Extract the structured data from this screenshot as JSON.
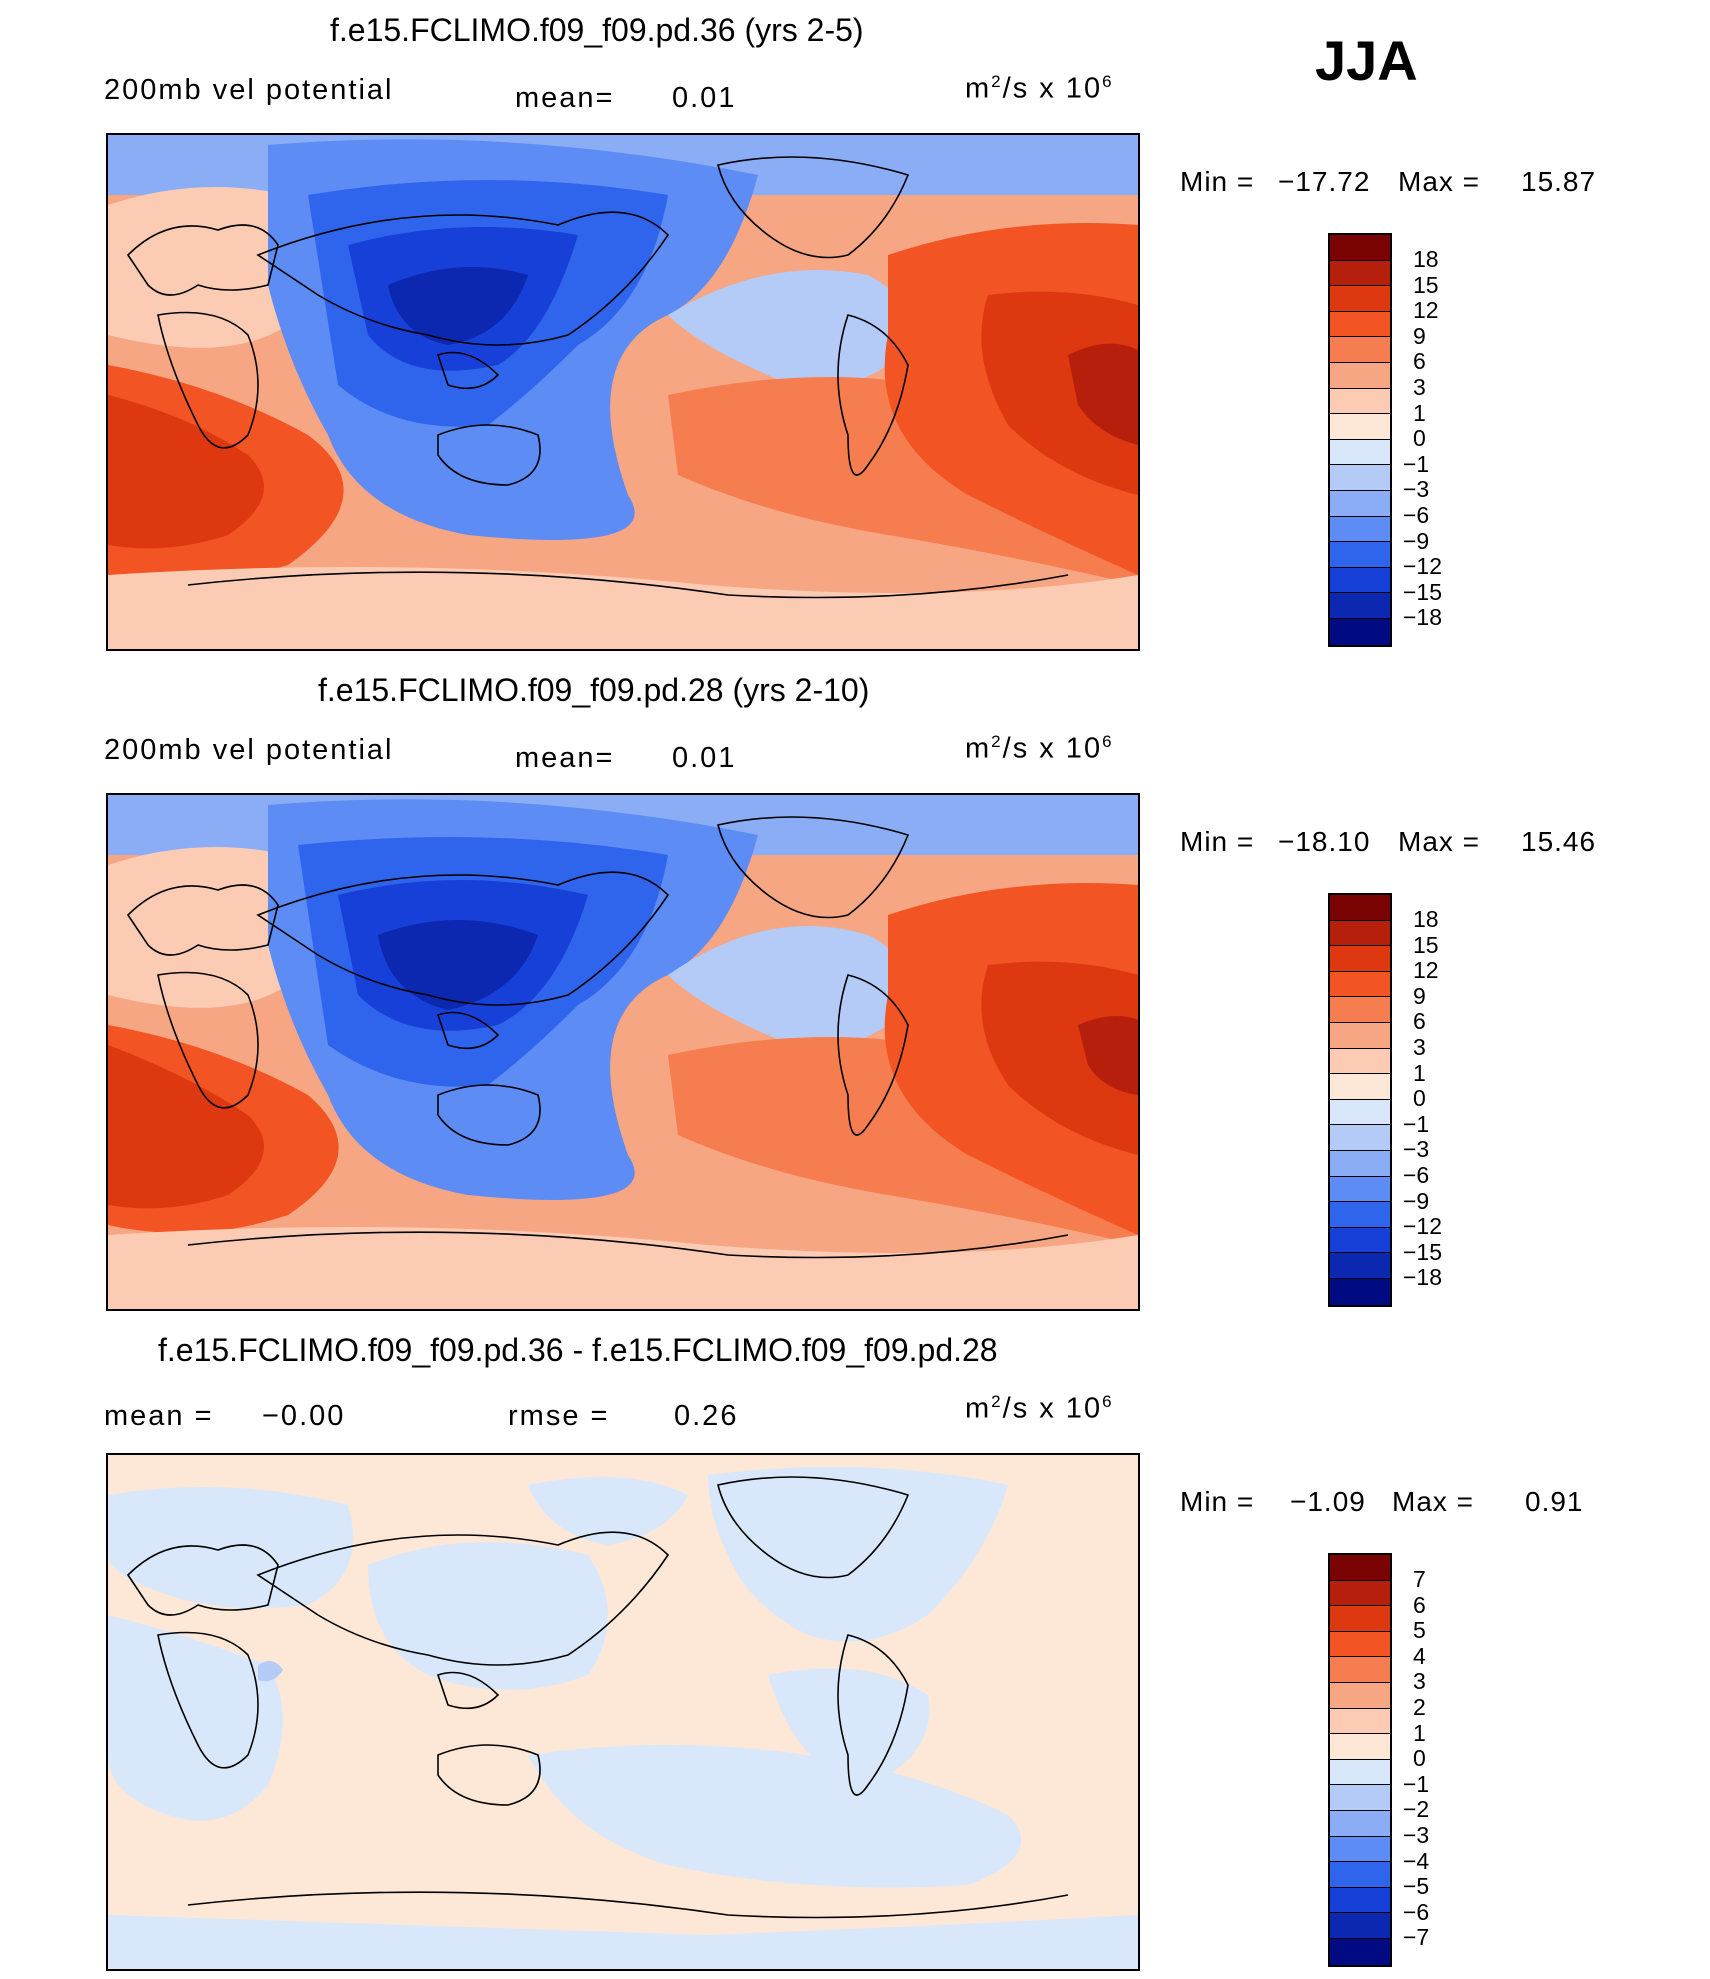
{
  "season": "JJA",
  "legend_colors": [
    "#7a0403",
    "#b71f0d",
    "#dd380f",
    "#f25424",
    "#f57d4f",
    "#f6a683",
    "#fbcbb3",
    "#fde7d6",
    "#d8e8fa",
    "#b4cbf7",
    "#8aadf6",
    "#5d8cf4",
    "#2f65ec",
    "#1640d8",
    "#0c27b0",
    "#000a83"
  ],
  "panels": [
    {
      "title": "f.e15.FCLIMO.f09_f09.pd.36 (yrs 2-5)",
      "left_label": "200mb  vel  potential",
      "mid_label": "mean=",
      "mid_value": "0.01",
      "units": "m",
      "units_sup": "2",
      "units_rest": "/s  x  10",
      "units_exp": "6",
      "min_label": "Min  =",
      "min_value": "−17.72",
      "max_label": "Max  =",
      "max_value": "15.87",
      "levels": [
        "18",
        "15",
        "12",
        "9",
        "6",
        "3",
        "1",
        "0",
        "−1",
        "−3",
        "−6",
        "−9",
        "−12",
        "−15",
        "−18"
      ]
    },
    {
      "title": "f.e15.FCLIMO.f09_f09.pd.28 (yrs 2-10)",
      "left_label": "200mb  vel  potential",
      "mid_label": "mean=",
      "mid_value": "0.01",
      "units": "m",
      "units_sup": "2",
      "units_rest": "/s  x  10",
      "units_exp": "6",
      "min_label": "Min  =",
      "min_value": "−18.10",
      "max_label": "Max  =",
      "max_value": "15.46",
      "levels": [
        "18",
        "15",
        "12",
        "9",
        "6",
        "3",
        "1",
        "0",
        "−1",
        "−3",
        "−6",
        "−9",
        "−12",
        "−15",
        "−18"
      ]
    },
    {
      "title": "f.e15.FCLIMO.f09_f09.pd.36 - f.e15.FCLIMO.f09_f09.pd.28",
      "left_label": "mean  =",
      "left_value": "−0.00",
      "mid_label": "rmse  =",
      "mid_value": "0.26",
      "units": "m",
      "units_sup": "2",
      "units_rest": "/s  x  10",
      "units_exp": "6",
      "min_label": "Min  =",
      "min_value": "−1.09",
      "max_label": "Max  =",
      "max_value": "0.91",
      "levels": [
        "7",
        "6",
        "5",
        "4",
        "3",
        "2",
        "1",
        "0",
        "−1",
        "−2",
        "−3",
        "−4",
        "−5",
        "−6",
        "−7"
      ]
    }
  ]
}
